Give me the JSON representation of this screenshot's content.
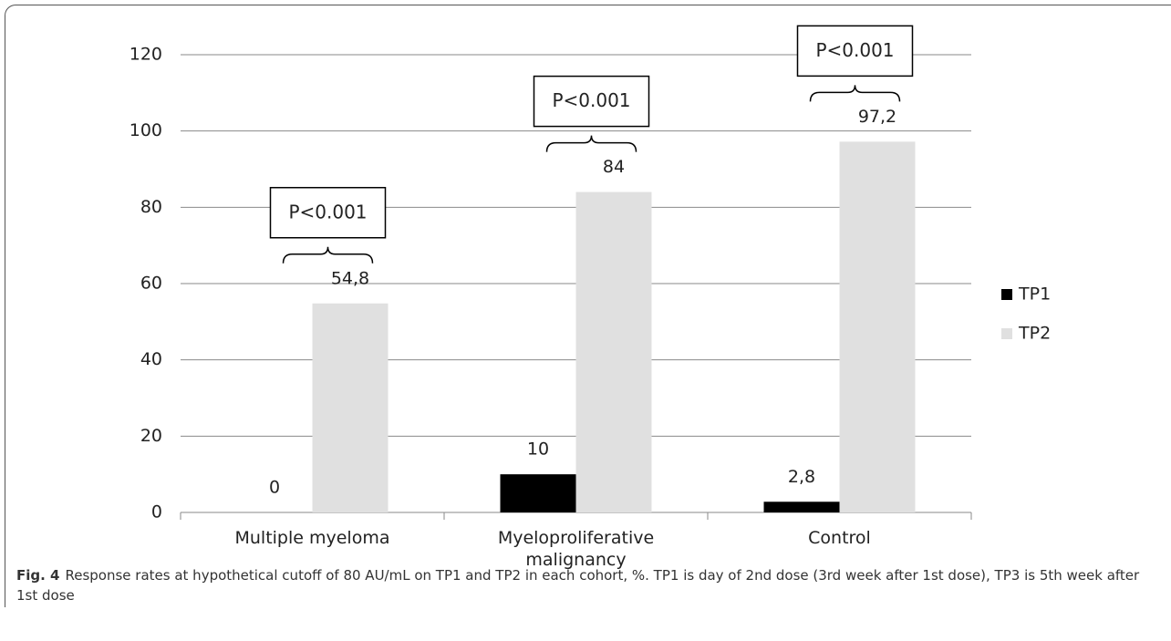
{
  "chart_data": {
    "type": "bar",
    "categories": [
      "Multiple myeloma",
      "Myeloproliferative malignancy",
      "Control"
    ],
    "series": [
      {
        "name": "TP1",
        "color": "#000000",
        "values": [
          0,
          10,
          2.8
        ],
        "value_labels": [
          "0",
          "10",
          "2,8"
        ]
      },
      {
        "name": "TP2",
        "color": "#e0e0e0",
        "values": [
          54.8,
          84,
          97.2
        ],
        "value_labels": [
          "54,8",
          "84",
          "97,2"
        ]
      }
    ],
    "annotations": [
      "P<0.001",
      "P<0.001",
      "P<0.001"
    ],
    "ylim": [
      0,
      120
    ],
    "yticks": [
      0,
      20,
      40,
      60,
      80,
      100,
      120
    ],
    "grid": true,
    "legend": "right",
    "caption_label": "Fig. 4",
    "caption": "Response rates at hypothetical cutoff of 80 AU/mL on TP1 and TP2 in each cohort, %. TP1 is day of 2nd dose (3rd week after 1st dose), TP3 is 5th week after 1st dose"
  }
}
